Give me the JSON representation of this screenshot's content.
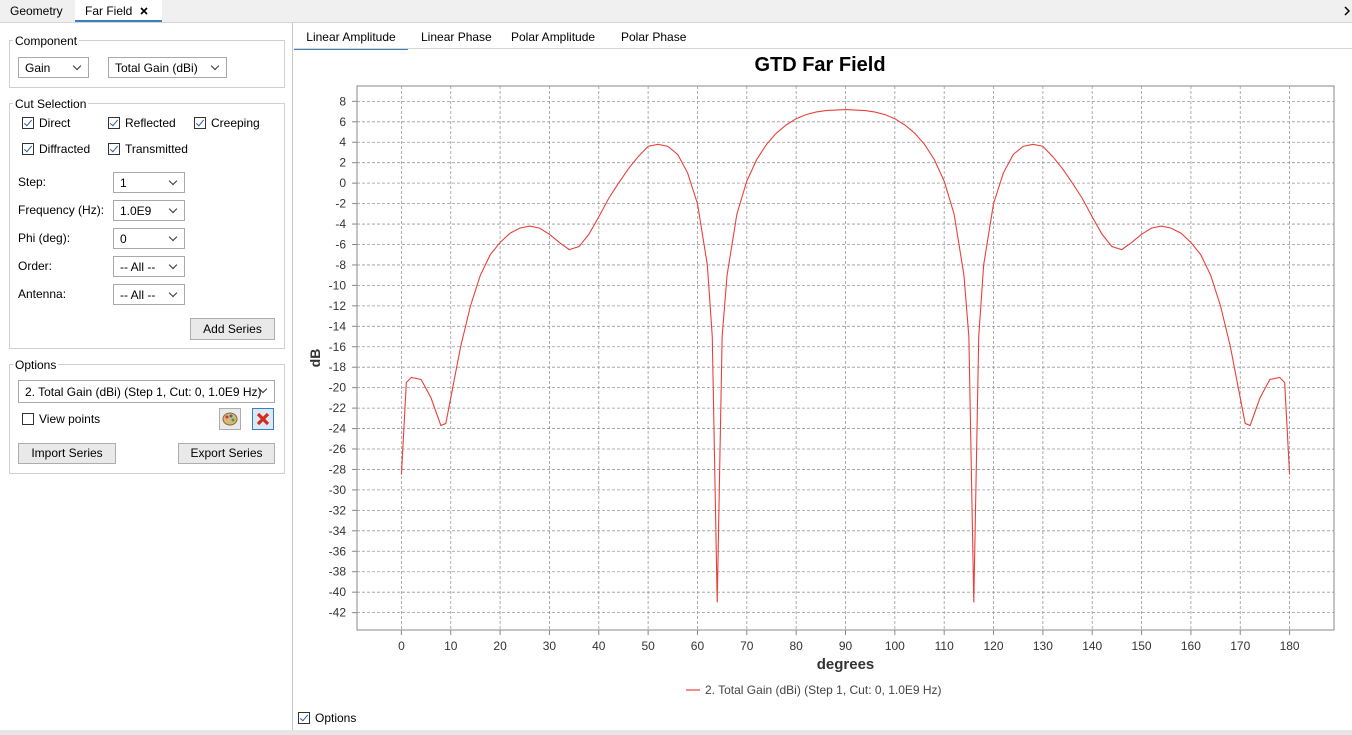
{
  "tabs": [
    "Geometry",
    "Far Field"
  ],
  "component": {
    "title": "Component",
    "selects": [
      "Gain",
      "Total Gain (dBi)"
    ]
  },
  "cut_selection": {
    "title": "Cut Selection",
    "checks": [
      {
        "label": "Direct",
        "checked": true
      },
      {
        "label": "Reflected",
        "checked": true
      },
      {
        "label": "Creeping",
        "checked": true
      },
      {
        "label": "Diffracted",
        "checked": true
      },
      {
        "label": "Transmitted",
        "checked": true
      }
    ],
    "fields": [
      {
        "label": "Step:",
        "value": "1"
      },
      {
        "label": "Frequency (Hz):",
        "value": "1.0E9"
      },
      {
        "label": "Phi (deg):",
        "value": "0"
      },
      {
        "label": "Order:",
        "value": "-- All --"
      },
      {
        "label": "Antenna:",
        "value": "-- All --"
      }
    ],
    "button": "Add Series"
  },
  "options": {
    "title": "Options",
    "series": "2. Total Gain (dBi) (Step 1, Cut: 0, 1.0E9 Hz)",
    "view_points": {
      "label": "View points",
      "checked": false
    },
    "buttons": [
      "Import Series",
      "Export Series"
    ]
  },
  "view_tabs": [
    "Linear Amplitude",
    "Linear Phase",
    "Polar Amplitude",
    "Polar Phase"
  ],
  "footer_option": {
    "label": "Options",
    "checked": true
  },
  "chart_data": {
    "type": "line",
    "title": "GTD Far Field",
    "x_label": "degrees",
    "y_label": "dB",
    "x": [
      0,
      1,
      2,
      4,
      6,
      8,
      9,
      10,
      12,
      14,
      16,
      18,
      20,
      22,
      24,
      26,
      28,
      30,
      32,
      34,
      36,
      38,
      40,
      42,
      44,
      46,
      48,
      50,
      52,
      54,
      56,
      58,
      60,
      62,
      63,
      64,
      65,
      66,
      68,
      70,
      72,
      74,
      76,
      78,
      80,
      82,
      84,
      86,
      88,
      90,
      92,
      94,
      96,
      98,
      100,
      102,
      104,
      106,
      108,
      110,
      112,
      114,
      115,
      116,
      117,
      118,
      120,
      122,
      124,
      126,
      128,
      130,
      132,
      134,
      136,
      138,
      140,
      142,
      144,
      146,
      148,
      150,
      152,
      154,
      156,
      158,
      160,
      162,
      164,
      166,
      168,
      170,
      171,
      172,
      174,
      176,
      178,
      179,
      180
    ],
    "series": [
      {
        "name": "2. Total Gain (dBi) (Step 1, Cut: 0, 1.0E9 Hz)",
        "color": "#e8413c",
        "values": [
          -28.5,
          -19.5,
          -19,
          -19.2,
          -21,
          -23.7,
          -23.5,
          -21,
          -16,
          -12,
          -9,
          -7,
          -5.8,
          -4.9,
          -4.4,
          -4.2,
          -4.4,
          -5,
          -5.8,
          -6.5,
          -6.2,
          -5,
          -3.3,
          -1.5,
          0,
          1.4,
          2.6,
          3.6,
          3.8,
          3.6,
          2.8,
          1,
          -2,
          -8,
          -15,
          -41,
          -15,
          -9,
          -3,
          0.2,
          2.3,
          3.8,
          4.9,
          5.7,
          6.3,
          6.7,
          6.95,
          7.1,
          7.15,
          7.2,
          7.15,
          7.1,
          6.95,
          6.7,
          6.3,
          5.7,
          4.9,
          3.8,
          2.3,
          0.2,
          -3,
          -9,
          -15,
          -41,
          -15,
          -8,
          -2,
          1,
          2.8,
          3.6,
          3.8,
          3.6,
          2.6,
          1.4,
          0,
          -1.5,
          -3.3,
          -5,
          -6.2,
          -6.5,
          -5.8,
          -5,
          -4.4,
          -4.2,
          -4.4,
          -4.9,
          -5.8,
          -7,
          -9,
          -12,
          -16,
          -21,
          -23.5,
          -23.7,
          -21,
          -19.2,
          -19,
          -19.5,
          -28.5
        ]
      }
    ],
    "xlim": [
      -9,
      189
    ],
    "xticks": [
      0,
      10,
      20,
      30,
      40,
      50,
      60,
      70,
      80,
      90,
      100,
      110,
      120,
      130,
      140,
      150,
      160,
      170,
      180
    ],
    "ylim": [
      -43.7,
      9.5
    ],
    "yticks": [
      -42,
      -40,
      -38,
      -36,
      -34,
      -32,
      -30,
      -28,
      -26,
      -24,
      -22,
      -20,
      -18,
      -16,
      -14,
      -12,
      -10,
      -8,
      -6,
      -4,
      -2,
      0,
      2,
      4,
      6,
      8
    ],
    "grid": true,
    "legend": "bottom"
  }
}
